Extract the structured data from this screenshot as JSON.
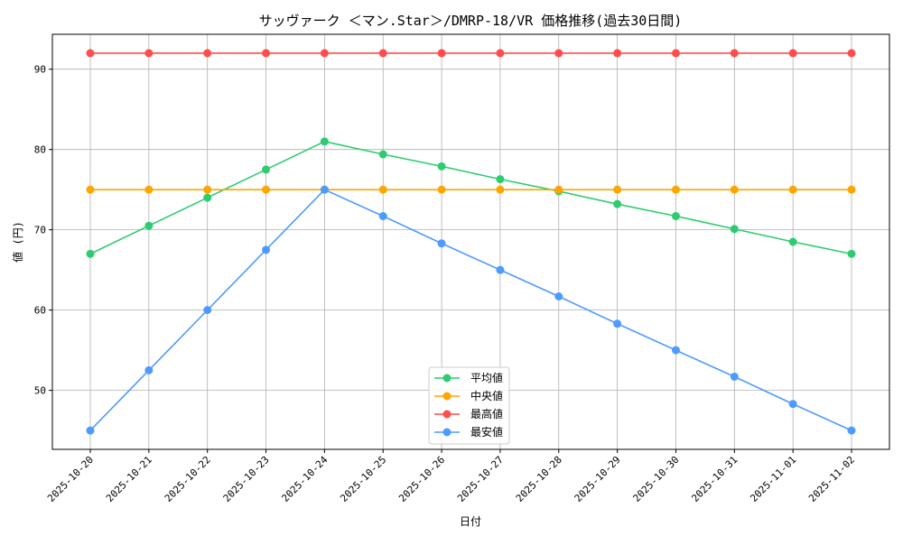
{
  "chart_data": {
    "type": "line",
    "title": "サッヴァーク ＜マン.Star＞/DMRP-18/VR 価格推移(過去30日間)",
    "xlabel": "日付",
    "ylabel": "値 (円)",
    "x": [
      "2025-10-20",
      "2025-10-21",
      "2025-10-22",
      "2025-10-23",
      "2025-10-24",
      "2025-10-25",
      "2025-10-26",
      "2025-10-27",
      "2025-10-28",
      "2025-10-29",
      "2025-10-30",
      "2025-10-31",
      "2025-11-01",
      "2025-11-02"
    ],
    "yticks": [
      50,
      60,
      70,
      80,
      90
    ],
    "ylim": [
      42.65,
      94.35
    ],
    "grid": true,
    "legend_position": "bottom-center",
    "series": [
      {
        "name": "平均値",
        "color": "#2ecc71",
        "values": [
          67,
          70.5,
          74,
          77.5,
          81,
          79.4,
          77.9,
          76.3,
          74.8,
          73.2,
          71.7,
          70.1,
          68.5,
          67
        ]
      },
      {
        "name": "中央値",
        "color": "#ffa500",
        "values": [
          75,
          75,
          75,
          75,
          75,
          75,
          75,
          75,
          75,
          75,
          75,
          75,
          75,
          75
        ]
      },
      {
        "name": "最高値",
        "color": "#ff4d4d",
        "values": [
          92,
          92,
          92,
          92,
          92,
          92,
          92,
          92,
          92,
          92,
          92,
          92,
          92,
          92
        ]
      },
      {
        "name": "最安値",
        "color": "#4d9bff",
        "values": [
          45,
          52.5,
          60,
          67.5,
          75,
          71.7,
          68.3,
          65,
          61.7,
          58.3,
          55,
          51.7,
          48.3,
          45
        ]
      }
    ]
  }
}
